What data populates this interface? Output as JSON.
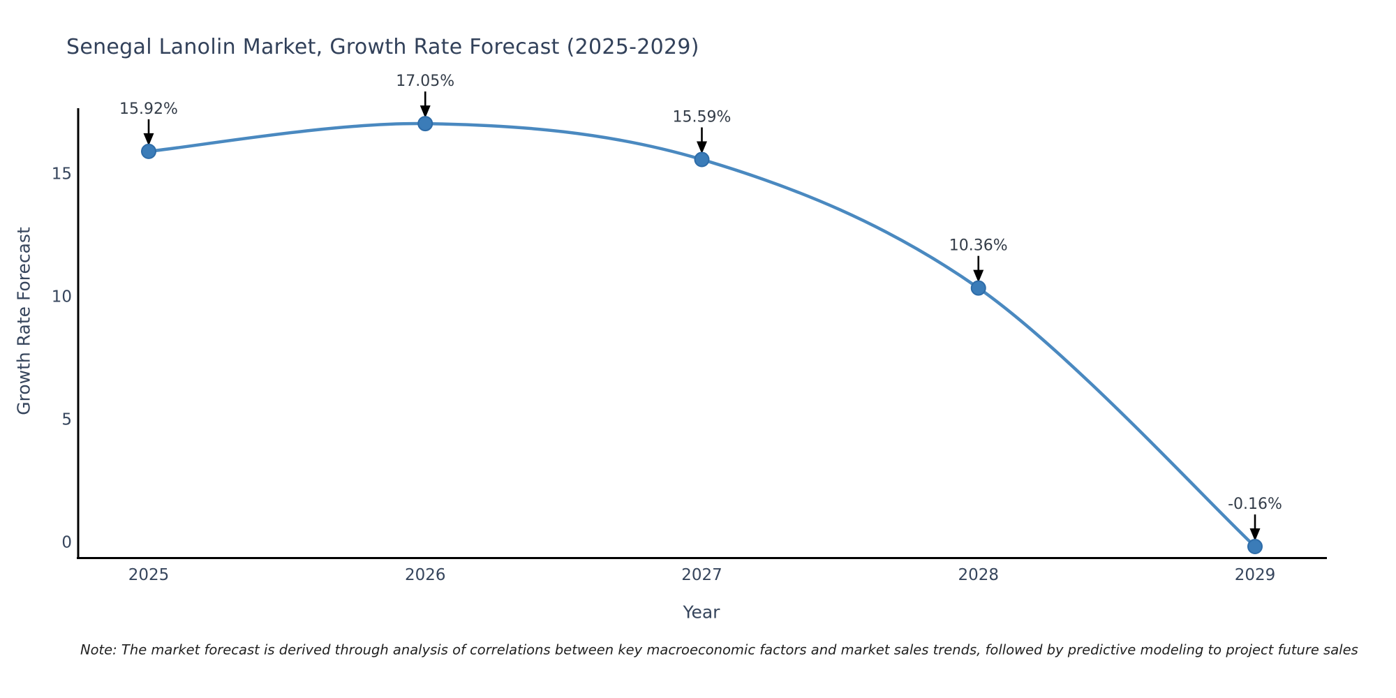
{
  "chart_data": {
    "type": "line",
    "title": "Senegal Lanolin Market, Growth Rate Forecast (2025-2029)",
    "xlabel": "Year",
    "ylabel": "Growth Rate Forecast",
    "categories": [
      2025,
      2026,
      2027,
      2028,
      2029
    ],
    "values": [
      15.92,
      17.05,
      15.59,
      10.36,
      -0.16
    ],
    "point_labels": [
      "15.92%",
      "17.05%",
      "15.59%",
      "10.36%",
      "-0.16%"
    ],
    "yticks": [
      0,
      5,
      10,
      15
    ],
    "ylim": [
      -0.65,
      18.3
    ],
    "grid": false,
    "legend_position": "none",
    "line_color": "#4a89c0",
    "marker_color": "#3b7cb8",
    "marker_edge_color": "#2e6ca8",
    "annotation_arrow_color": "#000000",
    "axis_spine_color": "#000000",
    "text_color": "#36455c"
  },
  "note": {
    "text": "Note: The market forecast is derived through analysis of correlations between key macroeconomic factors and market sales trends, followed by predictive modeling to project future sales"
  }
}
